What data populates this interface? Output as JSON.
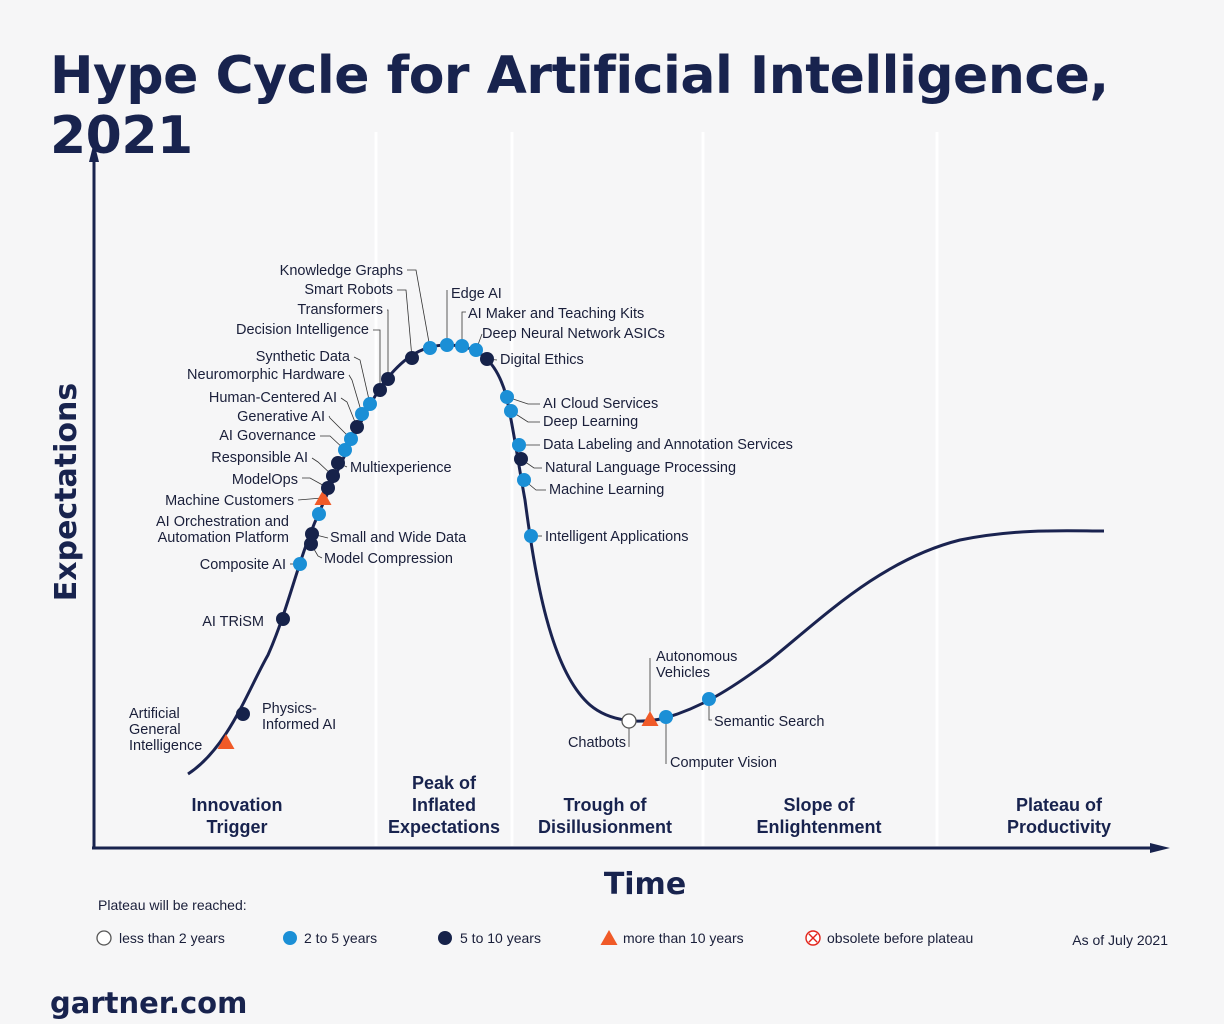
{
  "title": "Hype Cycle for Artificial Intelligence, 2021",
  "axes": {
    "x": "Time",
    "y": "Expectations"
  },
  "phases": [
    {
      "key": "innovation",
      "lines": [
        "Innovation",
        "Trigger"
      ]
    },
    {
      "key": "peak",
      "lines": [
        "Peak of",
        "Inflated",
        "Expectations"
      ]
    },
    {
      "key": "trough",
      "lines": [
        "Trough of",
        "Disillusionment"
      ]
    },
    {
      "key": "slope",
      "lines": [
        "Slope of",
        "Enlightenment"
      ]
    },
    {
      "key": "plateau",
      "lines": [
        "Plateau of",
        "Productivity"
      ]
    }
  ],
  "technologies": [
    {
      "name": "Artificial General Intelligence",
      "lines": [
        "Artificial",
        "General",
        "Intelligence"
      ],
      "category": "more-than-10"
    },
    {
      "name": "Physics-Informed AI",
      "lines": [
        "Physics-",
        "Informed AI"
      ],
      "category": "5-to-10"
    },
    {
      "name": "AI TRiSM",
      "lines": [
        "AI TRiSM"
      ],
      "category": "5-to-10"
    },
    {
      "name": "Composite AI",
      "lines": [
        "Composite AI"
      ],
      "category": "2-to-5"
    },
    {
      "name": "Model Compression",
      "lines": [
        "Model Compression"
      ],
      "category": "5-to-10"
    },
    {
      "name": "Small and Wide Data",
      "lines": [
        "Small and Wide Data"
      ],
      "category": "5-to-10"
    },
    {
      "name": "AI Orchestration and Automation Platform",
      "lines": [
        "AI Orchestration and",
        "Automation Platform"
      ],
      "category": "2-to-5"
    },
    {
      "name": "Machine Customers",
      "lines": [
        "Machine Customers"
      ],
      "category": "more-than-10"
    },
    {
      "name": "ModelOps",
      "lines": [
        "ModelOps"
      ],
      "category": "5-to-10"
    },
    {
      "name": "Responsible AI",
      "lines": [
        "Responsible AI"
      ],
      "category": "5-to-10"
    },
    {
      "name": "Multiexperience",
      "lines": [
        "Multiexperience"
      ],
      "category": "5-to-10"
    },
    {
      "name": "AI Governance",
      "lines": [
        "AI Governance"
      ],
      "category": "2-to-5"
    },
    {
      "name": "Generative AI",
      "lines": [
        "Generative AI"
      ],
      "category": "2-to-5"
    },
    {
      "name": "Human-Centered AI",
      "lines": [
        "Human-Centered AI"
      ],
      "category": "5-to-10"
    },
    {
      "name": "Neuromorphic Hardware",
      "lines": [
        "Neuromorphic Hardware"
      ],
      "category": "2-to-5"
    },
    {
      "name": "Synthetic Data",
      "lines": [
        "Synthetic Data"
      ],
      "category": "2-to-5"
    },
    {
      "name": "Decision Intelligence",
      "lines": [
        "Decision Intelligence"
      ],
      "category": "5-to-10"
    },
    {
      "name": "Transformers",
      "lines": [
        "Transformers"
      ],
      "category": "5-to-10"
    },
    {
      "name": "Smart Robots",
      "lines": [
        "Smart Robots"
      ],
      "category": "5-to-10"
    },
    {
      "name": "Knowledge Graphs",
      "lines": [
        "Knowledge Graphs"
      ],
      "category": "2-to-5"
    },
    {
      "name": "Edge AI",
      "lines": [
        "Edge AI"
      ],
      "category": "2-to-5"
    },
    {
      "name": "AI Maker and Teaching Kits",
      "lines": [
        "AI Maker and Teaching Kits"
      ],
      "category": "2-to-5"
    },
    {
      "name": "Deep Neural Network ASICs",
      "lines": [
        "Deep Neural Network ASICs"
      ],
      "category": "2-to-5"
    },
    {
      "name": "Digital Ethics",
      "lines": [
        "Digital Ethics"
      ],
      "category": "5-to-10"
    },
    {
      "name": "AI Cloud Services",
      "lines": [
        "AI Cloud Services"
      ],
      "category": "2-to-5"
    },
    {
      "name": "Deep Learning",
      "lines": [
        "Deep Learning"
      ],
      "category": "2-to-5"
    },
    {
      "name": "Data Labeling and Annotation Services",
      "lines": [
        "Data Labeling and Annotation Services"
      ],
      "category": "2-to-5"
    },
    {
      "name": "Natural Language Processing",
      "lines": [
        "Natural Language Processing"
      ],
      "category": "5-to-10"
    },
    {
      "name": "Machine Learning",
      "lines": [
        "Machine Learning"
      ],
      "category": "2-to-5"
    },
    {
      "name": "Intelligent Applications",
      "lines": [
        "Intelligent Applications"
      ],
      "category": "2-to-5"
    },
    {
      "name": "Chatbots",
      "lines": [
        "Chatbots"
      ],
      "category": "less-than-2"
    },
    {
      "name": "Autonomous Vehicles",
      "lines": [
        "Autonomous",
        "Vehicles"
      ],
      "category": "more-than-10"
    },
    {
      "name": "Computer Vision",
      "lines": [
        "Computer Vision"
      ],
      "category": "2-to-5"
    },
    {
      "name": "Semantic Search",
      "lines": [
        "Semantic Search"
      ],
      "category": "2-to-5"
    }
  ],
  "legend": {
    "title": "Plateau will be reached:",
    "items": [
      {
        "key": "less-than-2",
        "label": "less than 2 years"
      },
      {
        "key": "2-to-5",
        "label": "2 to 5 years"
      },
      {
        "key": "5-to-10",
        "label": "5 to 10 years"
      },
      {
        "key": "more-than-10",
        "label": "more than 10 years"
      },
      {
        "key": "obsolete",
        "label": "obsolete before plateau"
      }
    ]
  },
  "as_of": "As of July 2021",
  "footer": "gartner.com",
  "colors": {
    "navy": "#18234e",
    "curve": "#1a2350",
    "light_blue": "#1b8fd6",
    "dark_navy": "#16224a",
    "orange": "#f05a28",
    "red": "#e2231a",
    "divider": "#ffffff"
  }
}
